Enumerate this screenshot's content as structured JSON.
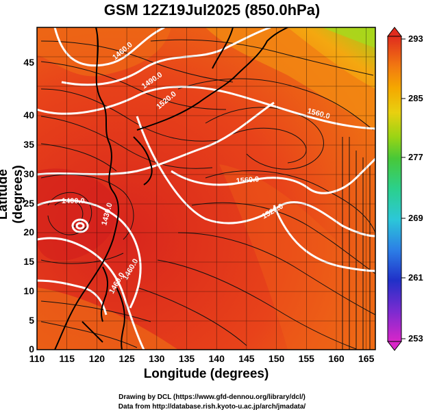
{
  "title": "GSM 12Z19Jul2025 (850.0hPa)",
  "axes": {
    "xlabel": "Longitude (degrees)",
    "ylabel": "Latitude  (degrees)",
    "x_ticks": [
      "110",
      "115",
      "120",
      "125",
      "130",
      "135",
      "140",
      "145",
      "150",
      "155",
      "160",
      "165"
    ],
    "y_ticks": [
      "0",
      "5",
      "10",
      "15",
      "20",
      "25",
      "30",
      "35",
      "40",
      "45"
    ]
  },
  "colorbar": {
    "ticks": [
      "253",
      "261",
      "269",
      "277",
      "285",
      "293"
    ],
    "colors": [
      "#d826c8",
      "#6a2bd0",
      "#2030c8",
      "#2c7fe6",
      "#2cc7d8",
      "#2bd08c",
      "#48c838",
      "#9ad414",
      "#e8d010",
      "#f5a800",
      "#f27a10",
      "#e84a18",
      "#e02c1e"
    ]
  },
  "contour_labels": [
    "1460.0",
    "1490.0",
    "1520.0",
    "1560.0",
    "1400.0",
    "1430.0",
    "1460.0",
    "1560.0",
    "1520.0",
    "1460.0"
  ],
  "credits": {
    "line1": "Drawing by DCL (https://www.gfd-dennou.org/library/dcl/)",
    "line2": "Data from http://database.rish.kyoto-u.ac.jp/arch/jmadata/"
  }
}
